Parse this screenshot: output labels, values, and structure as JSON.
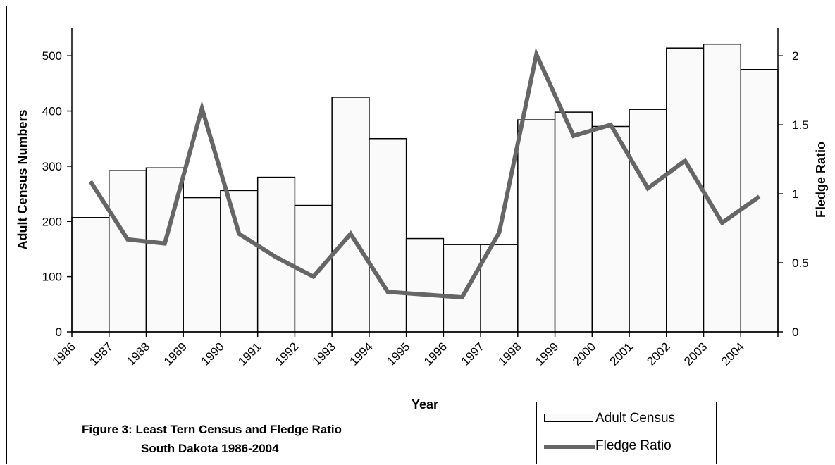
{
  "chart_data": {
    "type": "bar",
    "categories": [
      "1986",
      "1987",
      "1988",
      "1989",
      "1990",
      "1991",
      "1992",
      "1993",
      "1994",
      "1995",
      "1996",
      "1997",
      "1998",
      "1999",
      "2000",
      "2001",
      "2002",
      "2003",
      "2004"
    ],
    "series": [
      {
        "name": "Adult Census",
        "type": "bar",
        "axis": "left",
        "values": [
          207,
          292,
          297,
          243,
          256,
          280,
          229,
          425,
          350,
          169,
          158,
          158,
          384,
          398,
          372,
          403,
          514,
          521,
          475
        ]
      },
      {
        "name": "Fledge Ratio",
        "type": "line",
        "axis": "right",
        "values": [
          1.09,
          0.67,
          0.64,
          1.62,
          0.71,
          0.54,
          0.4,
          0.71,
          0.29,
          0.27,
          0.25,
          0.72,
          2.01,
          1.42,
          1.5,
          1.04,
          1.24,
          0.79,
          0.98
        ]
      }
    ],
    "xlabel": "Year",
    "ylabel": "Adult Census Numbers",
    "y2label": "Fledge Ratio",
    "ylim": [
      0,
      550
    ],
    "y2lim": [
      0,
      2.2
    ],
    "yticks": [
      "0",
      "100",
      "200",
      "300",
      "400",
      "500"
    ],
    "y2ticks": [
      "0",
      "0.5",
      "1",
      "1.5",
      "2"
    ],
    "grid": false,
    "legend_position": "bottom-right",
    "colors": {
      "bar_fill": "#fafafa",
      "bar_stroke": "#000000",
      "line": "#666666"
    }
  },
  "caption": {
    "line1": "Figure 3:  Least Tern Census and Fledge Ratio",
    "line2": "South Dakota 1986-2004"
  },
  "legend": {
    "bar_label": "Adult Census",
    "line_label": "Fledge Ratio"
  }
}
